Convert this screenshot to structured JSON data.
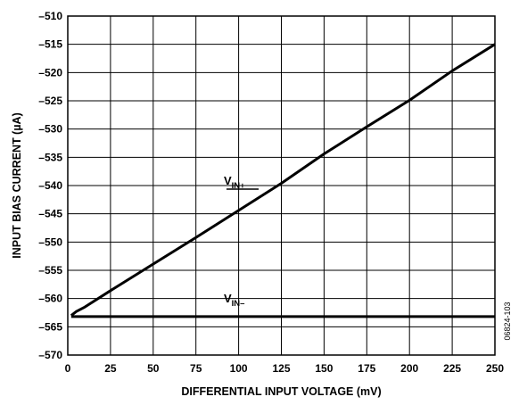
{
  "chart_data": {
    "type": "line",
    "xlabel": "DIFFERENTIAL INPUT VOLTAGE (mV)",
    "ylabel": "INPUT BIAS CURRENT (µA)",
    "xlim": [
      0,
      250
    ],
    "ylim": [
      -570,
      -510
    ],
    "xticks": [
      0,
      25,
      50,
      75,
      100,
      125,
      150,
      175,
      200,
      225,
      250
    ],
    "yticks": [
      -510,
      -515,
      -520,
      -525,
      -530,
      -535,
      -540,
      -545,
      -550,
      -555,
      -560,
      -565,
      -570
    ],
    "xtick_labels": [
      "0",
      "25",
      "50",
      "75",
      "100",
      "125",
      "150",
      "175",
      "200",
      "225",
      "250"
    ],
    "ytick_labels": [
      "–510",
      "–515",
      "–520",
      "–525",
      "–530",
      "–535",
      "–540",
      "–545",
      "–550",
      "–555",
      "–560",
      "–565",
      "–570"
    ],
    "grid": true,
    "series": [
      {
        "name": "VIN+",
        "label_main": "V",
        "label_sub": "IN+",
        "x": [
          2,
          5,
          10,
          25,
          50,
          75,
          100,
          125,
          150,
          175,
          200,
          225,
          250
        ],
        "y": [
          -563,
          -562.3,
          -561.5,
          -558.6,
          -553.9,
          -549.2,
          -544.4,
          -539.6,
          -534.4,
          -529.6,
          -524.9,
          -519.7,
          -515
        ],
        "color": "#000000"
      },
      {
        "name": "VIN–",
        "label_main": "V",
        "label_sub": "IN–",
        "x": [
          2,
          250
        ],
        "y": [
          -563.2,
          -563.2
        ],
        "color": "#000000"
      }
    ]
  },
  "figure_id": "06824-103"
}
